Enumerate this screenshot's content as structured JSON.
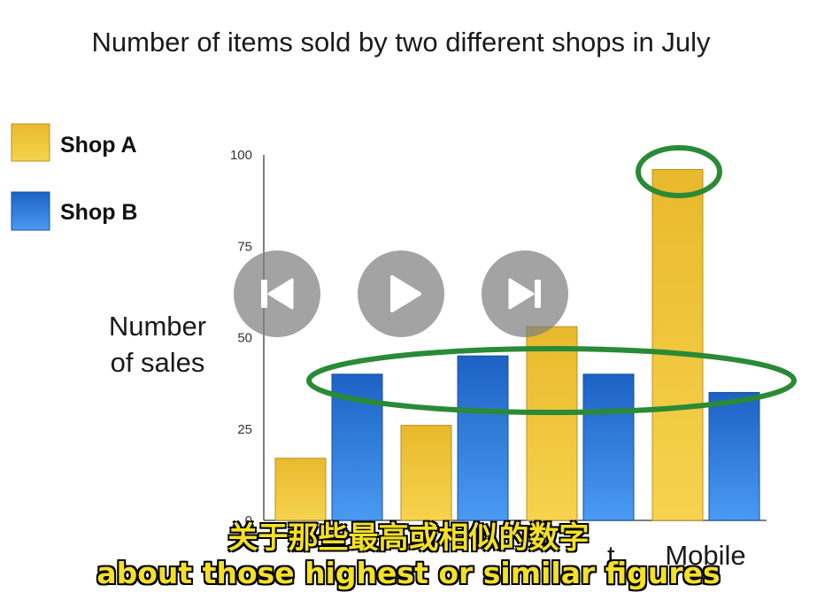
{
  "chart_data": {
    "type": "bar",
    "title": "Number of items sold by two different shops in July",
    "xlabel": "",
    "ylabel": [
      "Number",
      "of sales"
    ],
    "ylim": [
      0,
      100
    ],
    "yticks": [
      0,
      25,
      50,
      75,
      100
    ],
    "categories": [
      "",
      "",
      "",
      "Mobile"
    ],
    "partial_category_text": [
      "",
      "",
      "t",
      ""
    ],
    "series": [
      {
        "name": "Shop A",
        "color": "#f0c53a",
        "values": [
          17,
          26,
          53,
          96
        ]
      },
      {
        "name": "Shop B",
        "color": "#2f7fdc",
        "values": [
          40,
          45,
          40,
          35
        ]
      }
    ],
    "legend_position": "left",
    "grid": false,
    "annotations": [
      {
        "shape": "ellipse",
        "color": "#2a8a35",
        "highlights": "Shop A Mobile (96)"
      },
      {
        "shape": "ellipse",
        "color": "#2a8a35",
        "highlights": "Shop B values around 35-45"
      }
    ]
  },
  "player": {
    "prev_icon": "skip-previous-icon",
    "play_icon": "play-icon",
    "next_icon": "skip-next-icon"
  },
  "subtitles": {
    "chinese": "关于那些最高或相似的数字",
    "english": "about those highest or similar figures"
  }
}
